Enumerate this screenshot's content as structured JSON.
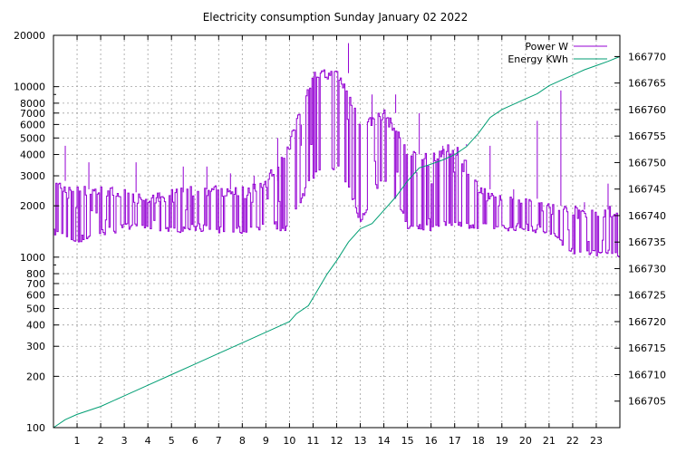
{
  "chart_data": {
    "type": "line",
    "title": "Electricity consumption Sunday January 02 2022",
    "xlabel": "",
    "x_range": [
      0,
      24
    ],
    "x_ticks": [
      "1",
      "2",
      "3",
      "4",
      "5",
      "6",
      "7",
      "8",
      "9",
      "10",
      "11",
      "12",
      "13",
      "14",
      "15",
      "16",
      "17",
      "18",
      "19",
      "20",
      "21",
      "22",
      "23"
    ],
    "y_left": {
      "label": "",
      "scale": "log",
      "range": [
        100,
        20000
      ],
      "tick_values": [
        100,
        200,
        300,
        400,
        500,
        600,
        700,
        800,
        1000,
        2000,
        3000,
        4000,
        5000,
        6000,
        7000,
        8000,
        10000,
        20000
      ],
      "tick_labels": [
        "100",
        "200",
        "300",
        "400",
        "500",
        "600",
        "700",
        "800",
        "1000",
        "2000",
        "3000",
        "4000",
        "5000",
        "6000",
        "7000",
        "8000",
        "10000",
        "20000"
      ]
    },
    "y_right": {
      "label": "",
      "scale": "linear",
      "range": [
        166700,
        166774
      ],
      "tick_values": [
        166705,
        166710,
        166715,
        166720,
        166725,
        166730,
        166735,
        166740,
        166745,
        166750,
        166755,
        166760,
        166765,
        166770
      ],
      "tick_labels": [
        "166705",
        "166710",
        "166715",
        "166720",
        "166725",
        "166730",
        "166735",
        "166740",
        "166745",
        "166750",
        "166755",
        "166760",
        "166765",
        "166770"
      ]
    },
    "grid": true,
    "legend_position": "top-right",
    "series": [
      {
        "name": "Power W",
        "axis": "left",
        "color": "#9400d3",
        "hourly_band": [
          {
            "x": 0,
            "low": 1400,
            "high": 2800,
            "peak": 4500
          },
          {
            "x": 1,
            "low": 1250,
            "high": 2500,
            "peak": 3600
          },
          {
            "x": 2,
            "low": 1400,
            "high": 2500,
            "peak": 2600
          },
          {
            "x": 3,
            "low": 1500,
            "high": 2400,
            "peak": 3600
          },
          {
            "x": 4,
            "low": 1500,
            "high": 2200,
            "peak": 2400
          },
          {
            "x": 5,
            "low": 1450,
            "high": 2400,
            "peak": 3400
          },
          {
            "x": 6,
            "low": 1500,
            "high": 2500,
            "peak": 3400
          },
          {
            "x": 7,
            "low": 1450,
            "high": 2500,
            "peak": 3100
          },
          {
            "x": 8,
            "low": 1450,
            "high": 2500,
            "peak": 3000
          },
          {
            "x": 9,
            "low": 1500,
            "high": 2800,
            "peak": 5000
          },
          {
            "x": 10,
            "low": 1500,
            "high": 4500,
            "peak": 6000
          },
          {
            "x": 11,
            "low": 3000,
            "high": 12000,
            "peak": 12000
          },
          {
            "x": 12,
            "low": 3500,
            "high": 12000,
            "peak": 18000
          },
          {
            "x": 13,
            "low": 1600,
            "high": 6000,
            "peak": 9000
          },
          {
            "x": 14,
            "low": 3000,
            "high": 7000,
            "peak": 9000
          },
          {
            "x": 15,
            "low": 1500,
            "high": 4000,
            "peak": 7000
          },
          {
            "x": 16,
            "low": 1500,
            "high": 4000,
            "peak": 4500
          },
          {
            "x": 17,
            "low": 1600,
            "high": 4500,
            "peak": 4600
          },
          {
            "x": 18,
            "low": 1500,
            "high": 2500,
            "peak": 4500
          },
          {
            "x": 19,
            "low": 1500,
            "high": 2200,
            "peak": 2500
          },
          {
            "x": 20,
            "low": 1500,
            "high": 2200,
            "peak": 6300
          },
          {
            "x": 21,
            "low": 1400,
            "high": 2000,
            "peak": 9500
          },
          {
            "x": 22,
            "low": 1100,
            "high": 1900,
            "peak": 2100
          },
          {
            "x": 23,
            "low": 1050,
            "high": 1900,
            "peak": 2700
          },
          {
            "x": 24,
            "low": 1050,
            "high": 1900,
            "peak": 1900
          }
        ]
      },
      {
        "name": "Energy KWh",
        "axis": "right",
        "color": "#009e73",
        "x": [
          0,
          0.5,
          1,
          2,
          3,
          4,
          5,
          6,
          7,
          8,
          9,
          10,
          10.3,
          10.8,
          11.2,
          11.6,
          12,
          12.5,
          13,
          13.5,
          14,
          14.5,
          15,
          15.5,
          16,
          16.5,
          17,
          17.5,
          18,
          18.5,
          19,
          19.5,
          20,
          20.5,
          21,
          21.5,
          22,
          22.5,
          23,
          23.5,
          24
        ],
        "y": [
          166700,
          166701.5,
          166702.5,
          166704,
          166706,
          166708,
          166710,
          166712,
          166714,
          166716,
          166718,
          166720,
          166721.5,
          166723,
          166726,
          166729,
          166731.5,
          166735,
          166737.5,
          166738.5,
          166741,
          166743.5,
          166746.5,
          166749,
          166749.7,
          166750.5,
          166751.5,
          166753,
          166755.5,
          166758.5,
          166760,
          166761,
          166762,
          166763,
          166764.5,
          166765.5,
          166766.5,
          166767.5,
          166768.3,
          166769.1,
          166770
        ]
      }
    ]
  }
}
